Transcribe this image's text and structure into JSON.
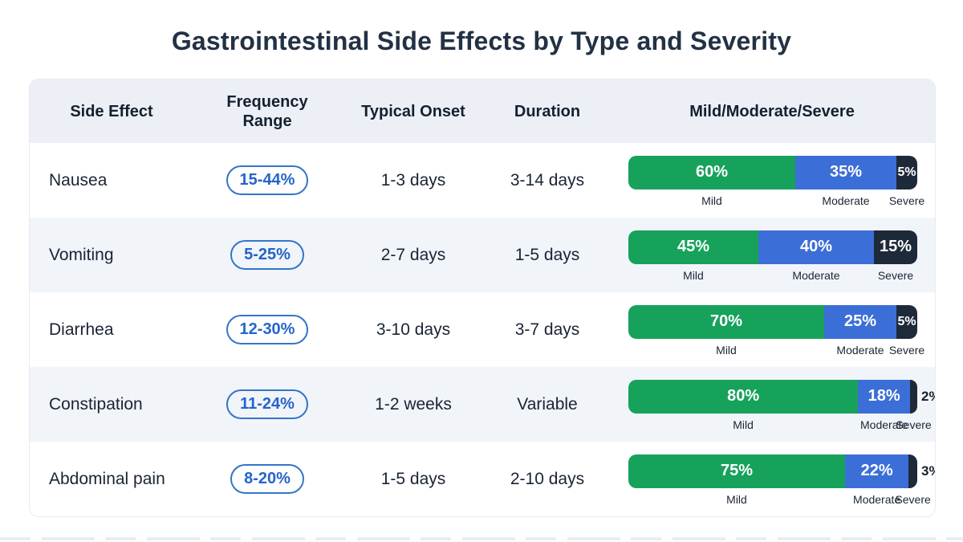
{
  "title": "Gastrointestinal Side Effects by Type and Severity",
  "table": {
    "headers": [
      "Side Effect",
      "Frequency Range",
      "Typical Onset",
      "Duration",
      "Mild/Moderate/Severe"
    ],
    "rows": [
      {
        "side_effect": "Nausea",
        "frequency_range": "15-44%",
        "typical_onset": "1-3 days",
        "duration": "3-14 days",
        "mild_pct": "60%",
        "moderate_pct": "35%",
        "severe_pct": "5%"
      },
      {
        "side_effect": "Vomiting",
        "frequency_range": "5-25%",
        "typical_onset": "2-7 days",
        "duration": "1-5 days",
        "mild_pct": "45%",
        "moderate_pct": "40%",
        "severe_pct": "15%"
      },
      {
        "side_effect": "Diarrhea",
        "frequency_range": "12-30%",
        "typical_onset": "3-10 days",
        "duration": "3-7 days",
        "mild_pct": "70%",
        "moderate_pct": "25%",
        "severe_pct": "5%"
      },
      {
        "side_effect": "Constipation",
        "frequency_range": "11-24%",
        "typical_onset": "1-2 weeks",
        "duration": "Variable",
        "mild_pct": "80%",
        "moderate_pct": "18%",
        "severe_pct": "2%"
      },
      {
        "side_effect": "Abdominal pain",
        "frequency_range": "8-20%",
        "typical_onset": "1-5 days",
        "duration": "2-10 days",
        "mild_pct": "75%",
        "moderate_pct": "22%",
        "severe_pct": "3%"
      }
    ]
  },
  "severity_labels": {
    "mild": "Mild",
    "moderate": "Moderate",
    "severe": "Severe"
  },
  "colors": {
    "mild": "#17a25c",
    "moderate": "#3c6ed7",
    "severe": "#1e2939",
    "pill_border": "#3375c8",
    "pill_text": "#2465cb",
    "header_bg": "#ecf0f6",
    "alt_row_bg": "#f1f4f9",
    "title_text": "#233144"
  },
  "chart_data": {
    "type": "table",
    "title": "Gastrointestinal Side Effects by Type and Severity",
    "columns": [
      "Side Effect",
      "Frequency Range",
      "Typical Onset",
      "Duration",
      "Mild/Moderate/Severe"
    ],
    "rows": [
      [
        "Nausea",
        "15-44%",
        "1-3 days",
        "3-14 days",
        "60% / 35% / 5%"
      ],
      [
        "Vomiting",
        "5-25%",
        "2-7 days",
        "1-5 days",
        "45% / 40% / 15%"
      ],
      [
        "Diarrhea",
        "12-30%",
        "3-10 days",
        "3-7 days",
        "70% / 25% / 5%"
      ],
      [
        "Constipation",
        "11-24%",
        "1-2 weeks",
        "Variable",
        "80% / 18% / 2%"
      ],
      [
        "Abdominal pain",
        "8-20%",
        "1-5 days",
        "2-10 days",
        "75% / 22% / 3%"
      ]
    ],
    "severity_chart": {
      "type": "bar",
      "subtype": "horizontal-stacked",
      "categories": [
        "Nausea",
        "Vomiting",
        "Diarrhea",
        "Constipation",
        "Abdominal pain"
      ],
      "series": [
        {
          "name": "Mild",
          "values": [
            60,
            45,
            70,
            80,
            75
          ]
        },
        {
          "name": "Moderate",
          "values": [
            35,
            40,
            25,
            18,
            22
          ]
        },
        {
          "name": "Severe",
          "values": [
            5,
            15,
            5,
            2,
            3
          ]
        }
      ],
      "value_unit": "%",
      "xlim": [
        0,
        100
      ],
      "grid": false,
      "legend_position": "below-each-bar"
    }
  }
}
